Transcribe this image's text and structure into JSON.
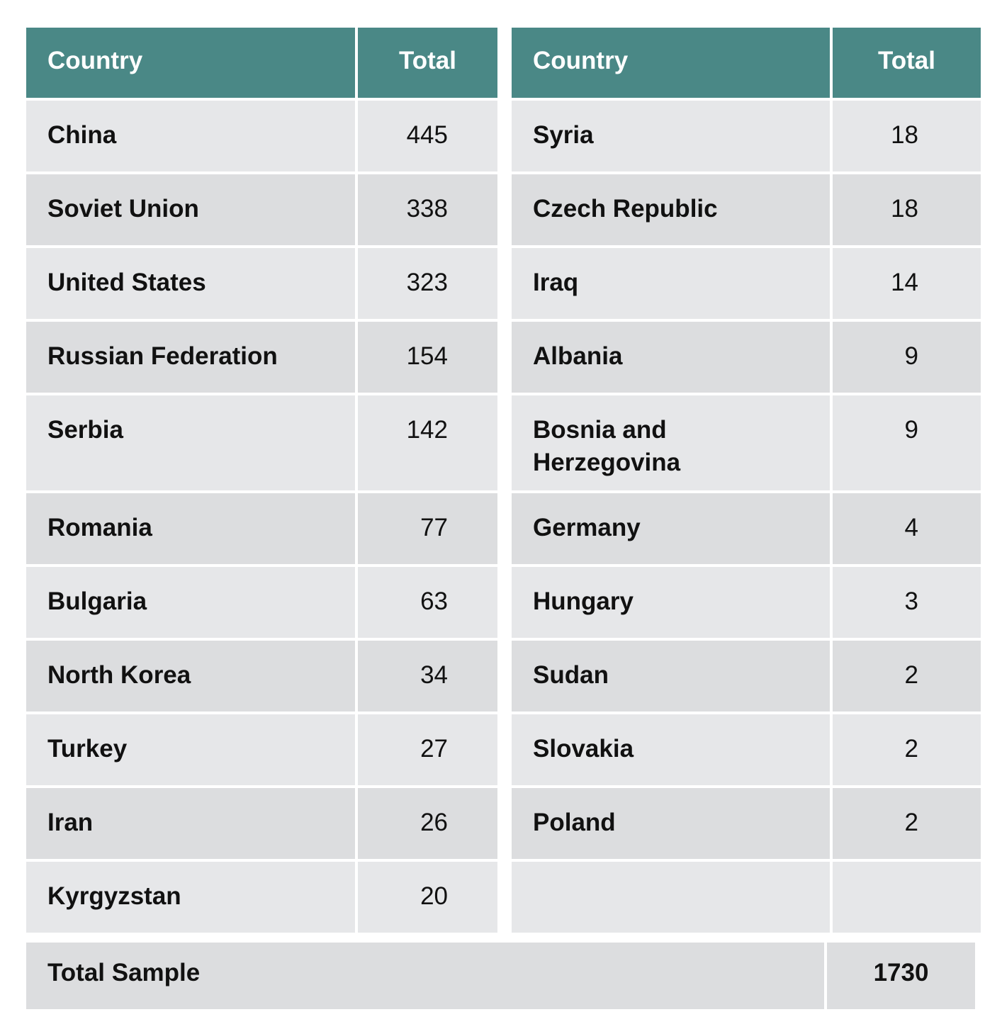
{
  "headers": {
    "country_left": "Country",
    "total_left": "Total",
    "country_right": "Country",
    "total_right": "Total"
  },
  "rows": [
    {
      "left_country": "China",
      "left_total": "445",
      "right_country": "Syria",
      "right_total": "18"
    },
    {
      "left_country": "Soviet Union",
      "left_total": "338",
      "right_country": "Czech Republic",
      "right_total": "18"
    },
    {
      "left_country": "United States",
      "left_total": "323",
      "right_country": "Iraq",
      "right_total": "14"
    },
    {
      "left_country": "Russian Federation",
      "left_total": "154",
      "right_country": "Albania",
      "right_total": "9"
    },
    {
      "left_country": "Serbia",
      "left_total": "142",
      "right_country": "Bosnia and Herzegovina",
      "right_total": "9"
    },
    {
      "left_country": "Romania",
      "left_total": "77",
      "right_country": "Germany",
      "right_total": "4"
    },
    {
      "left_country": "Bulgaria",
      "left_total": "63",
      "right_country": "Hungary",
      "right_total": "3"
    },
    {
      "left_country": "North Korea",
      "left_total": "34",
      "right_country": "Sudan",
      "right_total": "2"
    },
    {
      "left_country": "Turkey",
      "left_total": "27",
      "right_country": "Slovakia",
      "right_total": "2"
    },
    {
      "left_country": "Iran",
      "left_total": "26",
      "right_country": "Poland",
      "right_total": "2"
    },
    {
      "left_country": "Kyrgyzstan",
      "left_total": "20",
      "right_country": "",
      "right_total": ""
    }
  ],
  "total_sample": {
    "label": "Total Sample",
    "value": "1730"
  },
  "colors": {
    "header_bg": "#4a8886",
    "row_light": "#e6e7e9",
    "row_dark": "#dcdddf"
  }
}
